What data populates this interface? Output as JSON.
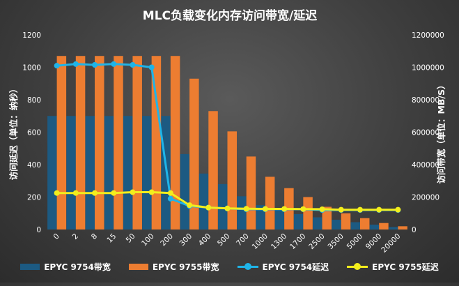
{
  "chart_data": {
    "type": "bar",
    "title": "MLC负载变化内存访问带宽/延迟",
    "ylabel": "访问延迟（单位：纳秒）",
    "y2label": "访问带宽（单位：MB/S）",
    "categories": [
      "0",
      "2",
      "8",
      "15",
      "50",
      "100",
      "200",
      "300",
      "400",
      "500",
      "700",
      "1000",
      "1300",
      "1700",
      "2500",
      "3500",
      "5000",
      "9000",
      "20000"
    ],
    "ylim": [
      0,
      1200
    ],
    "y2lim": [
      0,
      1200000
    ],
    "yticks": [
      "0",
      "200",
      "400",
      "600",
      "800",
      "1000",
      "1200"
    ],
    "y2ticks": [
      "0",
      "200000",
      "400000",
      "600000",
      "800000",
      "1000000",
      "1200000"
    ],
    "grid": false,
    "legend_position": "bottom",
    "series": [
      {
        "name": "EPYC 9754带宽",
        "kind": "bar",
        "axis": "right",
        "color": "#1c5a82",
        "values": [
          700000,
          700000,
          700000,
          700000,
          700000,
          700000,
          700000,
          465000,
          345000,
          280000,
          205000,
          150000,
          120000,
          95000,
          75000,
          60000,
          45000,
          30000,
          15000
        ]
      },
      {
        "name": "EPYC 9755带宽",
        "kind": "bar",
        "axis": "right",
        "color": "#ed7d31",
        "values": [
          1070000,
          1070000,
          1070000,
          1070000,
          1070000,
          1070000,
          1070000,
          930000,
          730000,
          605000,
          450000,
          325000,
          255000,
          200000,
          140000,
          100000,
          70000,
          40000,
          20000
        ]
      },
      {
        "name": "EPYC 9754延迟",
        "kind": "line",
        "axis": "left",
        "color": "#1fb4e8",
        "values": [
          1010,
          1020,
          1015,
          1020,
          1015,
          1000,
          190,
          145,
          135,
          130,
          125,
          125,
          125,
          125,
          120,
          120,
          120,
          120,
          120
        ]
      },
      {
        "name": "EPYC 9755延迟",
        "kind": "line",
        "axis": "left",
        "color": "#f3ee1c",
        "values": [
          225,
          225,
          225,
          225,
          230,
          230,
          225,
          150,
          135,
          130,
          128,
          127,
          127,
          126,
          125,
          122,
          122,
          122,
          122
        ]
      }
    ]
  }
}
